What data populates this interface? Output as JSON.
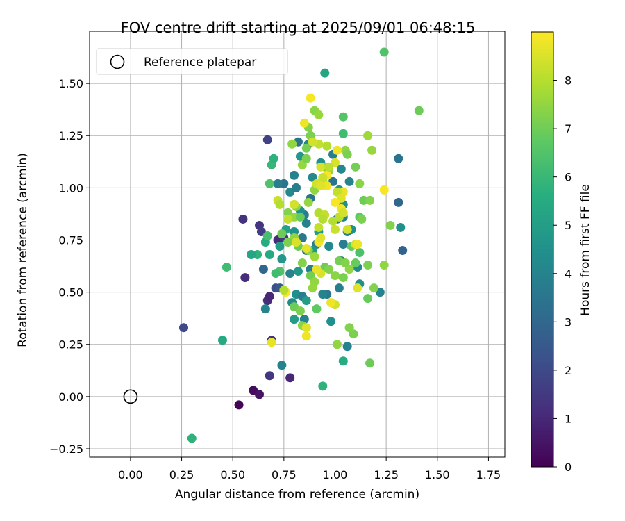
{
  "chart_data": {
    "type": "scatter",
    "title": "FOV centre drift starting at 2025/09/01 06:48:15",
    "xlabel": "Angular distance from reference (arcmin)",
    "ylabel": "Rotation from reference (arcmin)",
    "xlim": [
      -0.2,
      1.83
    ],
    "ylim": [
      -0.29,
      1.75
    ],
    "x_ticks": [
      "0.00",
      "0.25",
      "0.50",
      "0.75",
      "1.00",
      "1.25",
      "1.50",
      "1.75"
    ],
    "y_ticks": [
      "−0.25",
      "0.00",
      "0.25",
      "0.50",
      "0.75",
      "1.00",
      "1.25",
      "1.50"
    ],
    "grid": true,
    "legend": {
      "position": "top-left",
      "entries": [
        {
          "label": "Reference platepar",
          "marker": "open-circle",
          "x": 0.0,
          "y": 0.0
        }
      ]
    },
    "colorbar": {
      "label": "Hours from first FF file",
      "colormap": "viridis",
      "range": [
        0,
        9
      ],
      "ticks": [
        "0",
        "1",
        "2",
        "3",
        "4",
        "5",
        "6",
        "7",
        "8"
      ]
    },
    "points": [
      [
        0.53,
        -0.04,
        0.1
      ],
      [
        0.6,
        0.03,
        0.3
      ],
      [
        0.63,
        0.01,
        0.5
      ],
      [
        0.78,
        0.09,
        1.0
      ],
      [
        0.68,
        0.1,
        1.5
      ],
      [
        0.26,
        0.33,
        2.0
      ],
      [
        0.56,
        0.57,
        1.2
      ],
      [
        0.55,
        0.85,
        1.3
      ],
      [
        0.63,
        0.82,
        1.4
      ],
      [
        0.64,
        0.79,
        1.6
      ],
      [
        0.67,
        1.23,
        1.8
      ],
      [
        0.67,
        0.46,
        1.2
      ],
      [
        0.68,
        0.48,
        1.0
      ],
      [
        0.69,
        0.27,
        1.3
      ],
      [
        0.72,
        0.75,
        1.1
      ],
      [
        0.75,
        0.76,
        1.5
      ],
      [
        0.71,
        0.52,
        2.2
      ],
      [
        0.73,
        0.52,
        2.5
      ],
      [
        0.65,
        0.61,
        3.0
      ],
      [
        0.66,
        0.42,
        4.0
      ],
      [
        0.74,
        0.15,
        4.0
      ],
      [
        1.33,
        0.7,
        2.9
      ],
      [
        1.31,
        1.14,
        3.5
      ],
      [
        1.31,
        0.93,
        3.0
      ],
      [
        1.22,
        0.5,
        4.0
      ],
      [
        1.32,
        0.81,
        4.5
      ],
      [
        1.06,
        0.24,
        4.0
      ],
      [
        0.98,
        0.36,
        4.5
      ],
      [
        0.85,
        0.37,
        4.0
      ],
      [
        0.8,
        0.37,
        5.0
      ],
      [
        0.79,
        0.45,
        4.2
      ],
      [
        0.81,
        0.49,
        4.5
      ],
      [
        0.84,
        0.48,
        3.8
      ],
      [
        0.86,
        0.46,
        5.0
      ],
      [
        0.78,
        0.59,
        4.0
      ],
      [
        0.82,
        0.6,
        4.8
      ],
      [
        0.88,
        0.61,
        3.8
      ],
      [
        0.86,
        0.7,
        3.5
      ],
      [
        0.84,
        0.76,
        3.6
      ],
      [
        0.8,
        0.79,
        4.6
      ],
      [
        0.86,
        0.83,
        4.0
      ],
      [
        0.85,
        0.87,
        3.8
      ],
      [
        0.83,
        0.89,
        4.5
      ],
      [
        0.78,
        0.98,
        4.2
      ],
      [
        0.81,
        1.0,
        3.9
      ],
      [
        0.75,
        1.02,
        3.5
      ],
      [
        0.72,
        1.02,
        3.8
      ],
      [
        0.8,
        1.06,
        4.0
      ],
      [
        0.88,
        0.95,
        3.5
      ],
      [
        0.89,
        1.05,
        4.2
      ],
      [
        0.83,
        1.15,
        4.8
      ],
      [
        0.82,
        1.22,
        3.4
      ],
      [
        0.87,
        1.21,
        4.0
      ],
      [
        0.93,
        1.12,
        4.5
      ],
      [
        0.99,
        1.16,
        3.8
      ],
      [
        1.03,
        1.09,
        4.2
      ],
      [
        1.07,
        1.03,
        4.0
      ],
      [
        0.99,
        1.03,
        3.5
      ],
      [
        1.02,
        0.99,
        4.7
      ],
      [
        1.04,
        0.86,
        4.0
      ],
      [
        1.01,
        0.85,
        3.6
      ],
      [
        1.06,
        0.79,
        4.0
      ],
      [
        1.08,
        0.8,
        4.5
      ],
      [
        1.04,
        0.73,
        3.8
      ],
      [
        1.03,
        0.65,
        3.5
      ],
      [
        1.02,
        0.52,
        3.9
      ],
      [
        0.96,
        0.49,
        3.6
      ],
      [
        0.94,
        0.49,
        4.0
      ],
      [
        1.11,
        0.62,
        4.2
      ],
      [
        1.12,
        0.54,
        4.5
      ],
      [
        1.04,
        0.92,
        4.4
      ],
      [
        0.97,
        0.72,
        4.2
      ],
      [
        0.91,
        0.73,
        3.8
      ],
      [
        0.89,
        0.7,
        4.8
      ],
      [
        0.92,
        0.79,
        5.0
      ],
      [
        0.76,
        0.8,
        5.2
      ],
      [
        0.73,
        0.72,
        5.0
      ],
      [
        0.74,
        0.66,
        4.8
      ],
      [
        0.68,
        0.68,
        5.5
      ],
      [
        0.62,
        0.68,
        5.8
      ],
      [
        0.59,
        0.68,
        5.3
      ],
      [
        0.66,
        0.74,
        5.6
      ],
      [
        0.67,
        0.77,
        6.3
      ],
      [
        0.73,
        0.6,
        6.5
      ],
      [
        0.71,
        0.59,
        6.2
      ],
      [
        0.69,
        1.11,
        6.0
      ],
      [
        0.68,
        1.02,
        6.5
      ],
      [
        0.7,
        1.14,
        5.8
      ],
      [
        0.95,
        1.55,
        5.3
      ],
      [
        0.94,
        0.05,
        5.8
      ],
      [
        1.04,
        0.17,
        5.6
      ],
      [
        0.45,
        0.27,
        5.5
      ],
      [
        0.3,
        -0.2,
        5.8
      ],
      [
        0.47,
        0.62,
        6.2
      ],
      [
        1.24,
        1.65,
        6.5
      ],
      [
        1.41,
        1.37,
        7.0
      ],
      [
        1.17,
        0.16,
        7.0
      ],
      [
        1.09,
        0.3,
        7.2
      ],
      [
        1.07,
        0.33,
        7.3
      ],
      [
        1.01,
        0.25,
        7.5
      ],
      [
        0.91,
        0.42,
        6.8
      ],
      [
        1.16,
        0.47,
        6.9
      ],
      [
        1.19,
        0.52,
        7.3
      ],
      [
        1.24,
        0.63,
        7.5
      ],
      [
        1.16,
        0.63,
        7.2
      ],
      [
        1.27,
        0.82,
        7.3
      ],
      [
        1.1,
        0.64,
        6.9
      ],
      [
        1.12,
        0.86,
        6.8
      ],
      [
        1.13,
        0.85,
        7.2
      ],
      [
        1.12,
        0.69,
        6.4
      ],
      [
        1.08,
        0.72,
        6.9
      ],
      [
        1.14,
        0.94,
        7.0
      ],
      [
        1.17,
        0.94,
        7.3
      ],
      [
        1.12,
        1.02,
        7.4
      ],
      [
        1.1,
        1.1,
        7.1
      ],
      [
        1.05,
        1.18,
        7.5
      ],
      [
        1.06,
        1.16,
        7.2
      ],
      [
        1.18,
        1.18,
        7.6
      ],
      [
        1.16,
        1.25,
        7.7
      ],
      [
        1.04,
        1.26,
        6.2
      ],
      [
        1.04,
        1.34,
        6.6
      ],
      [
        0.9,
        1.37,
        7.4
      ],
      [
        0.92,
        1.35,
        7.6
      ],
      [
        0.87,
        1.29,
        7.3
      ],
      [
        0.88,
        1.25,
        7.2
      ],
      [
        0.79,
        1.21,
        7.5
      ],
      [
        0.86,
        1.19,
        7.1
      ],
      [
        0.84,
        1.11,
        7.6
      ],
      [
        0.86,
        1.14,
        7.2
      ],
      [
        0.95,
        1.1,
        7.4
      ],
      [
        0.97,
        1.08,
        7.5
      ],
      [
        0.94,
        1.04,
        7.7
      ],
      [
        0.9,
        0.99,
        7.5
      ],
      [
        0.87,
        0.93,
        7.6
      ],
      [
        0.81,
        0.91,
        7.4
      ],
      [
        0.77,
        0.88,
        7.3
      ],
      [
        0.8,
        0.86,
        7.6
      ],
      [
        0.83,
        0.86,
        6.9
      ],
      [
        0.74,
        0.78,
        7.0
      ],
      [
        0.8,
        0.76,
        7.5
      ],
      [
        0.77,
        0.74,
        7.2
      ],
      [
        0.82,
        0.72,
        7.0
      ],
      [
        0.87,
        0.7,
        7.4
      ],
      [
        0.9,
        0.67,
        7.7
      ],
      [
        0.84,
        0.64,
        7.3
      ],
      [
        0.88,
        0.58,
        7.1
      ],
      [
        0.9,
        0.55,
        7.5
      ],
      [
        0.89,
        0.52,
        7.6
      ],
      [
        0.8,
        0.43,
        7.0
      ],
      [
        0.83,
        0.41,
        7.2
      ],
      [
        0.84,
        0.34,
        7.4
      ],
      [
        0.95,
        0.62,
        7.0
      ],
      [
        0.97,
        0.61,
        7.3
      ],
      [
        1.0,
        0.58,
        7.4
      ],
      [
        1.04,
        0.57,
        7.2
      ],
      [
        1.02,
        0.65,
        7.1
      ],
      [
        1.07,
        0.61,
        7.5
      ],
      [
        1.05,
        0.64,
        7.3
      ],
      [
        0.92,
        0.88,
        8.0
      ],
      [
        0.95,
        0.87,
        8.2
      ],
      [
        0.99,
        0.84,
        8.0
      ],
      [
        1.0,
        0.8,
        8.3
      ],
      [
        1.02,
        0.86,
        8.1
      ],
      [
        1.06,
        0.8,
        8.4
      ],
      [
        1.1,
        0.73,
        8.5
      ],
      [
        1.11,
        0.52,
        8.6
      ],
      [
        1.0,
        0.44,
        8.4
      ],
      [
        0.98,
        0.45,
        8.8
      ],
      [
        0.93,
        0.59,
        8.5
      ],
      [
        0.91,
        0.61,
        8.7
      ],
      [
        0.86,
        0.33,
        8.6
      ],
      [
        0.86,
        0.29,
        8.8
      ],
      [
        0.69,
        0.26,
        8.7
      ],
      [
        0.76,
        0.5,
        8.9
      ],
      [
        0.75,
        0.51,
        8.0
      ],
      [
        0.77,
        0.85,
        8.2
      ],
      [
        0.8,
        0.92,
        8.4
      ],
      [
        0.72,
        0.94,
        8.3
      ],
      [
        0.73,
        0.92,
        8.0
      ],
      [
        0.81,
        0.74,
        8.5
      ],
      [
        0.86,
        0.71,
        8.7
      ],
      [
        0.92,
        0.74,
        8.9
      ],
      [
        0.93,
        0.76,
        8.6
      ],
      [
        0.92,
        0.81,
        8.2
      ],
      [
        0.94,
        0.85,
        8.0
      ],
      [
        0.96,
        1.01,
        8.8
      ],
      [
        0.91,
        1.02,
        8.4
      ],
      [
        0.93,
        1.01,
        8.6
      ],
      [
        0.96,
        1.06,
        8.9
      ],
      [
        1.0,
        1.12,
        8.5
      ],
      [
        1.01,
        1.18,
        8.8
      ],
      [
        0.92,
        1.21,
        8.2
      ],
      [
        0.89,
        1.22,
        8.4
      ],
      [
        0.85,
        1.31,
        8.8
      ],
      [
        0.88,
        1.43,
        8.9
      ],
      [
        0.96,
        1.2,
        8.0
      ],
      [
        1.24,
        0.99,
        8.9
      ],
      [
        1.04,
        0.98,
        8.7
      ],
      [
        1.01,
        0.98,
        8.2
      ],
      [
        1.03,
        0.95,
        8.6
      ],
      [
        1.03,
        0.9,
        8.8
      ],
      [
        1.04,
        0.88,
        8.4
      ],
      [
        1.11,
        0.73,
        8.8
      ],
      [
        0.93,
        1.1,
        8.5
      ],
      [
        0.97,
        1.1,
        8.1
      ],
      [
        0.94,
        1.05,
        8.3
      ],
      [
        1.0,
        0.93,
        8.9
      ]
    ]
  }
}
